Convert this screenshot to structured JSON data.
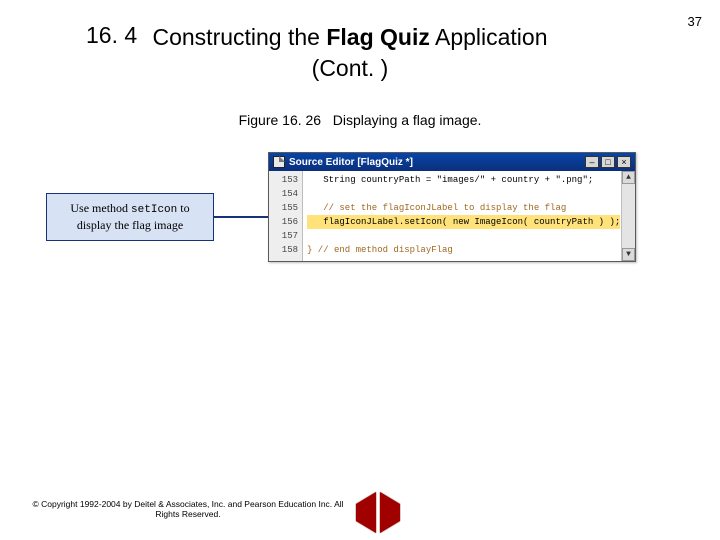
{
  "page_number": "37",
  "section_number": "16. 4",
  "title_prefix": "Constructing the ",
  "title_bold": "Flag Quiz",
  "title_suffix": " Application",
  "title_line2": "(Cont. )",
  "figure_label": "Figure 16. 26",
  "figure_caption": "Displaying a flag image.",
  "callout_line1": "Use method ",
  "callout_mono": "setIcon",
  "callout_line1_suffix": " to",
  "callout_line2": "display the flag image",
  "editor": {
    "title": "Source Editor [FlagQuiz *]",
    "min_label": "–",
    "max_label": "□",
    "close_label": "×",
    "line_numbers": [
      "153",
      "154",
      "155",
      "156",
      "157",
      "158"
    ],
    "code_lines": {
      "l153": "   String countryPath = \"images/\" + country + \".png\";",
      "l154": "",
      "l155_cmt": "   // set the flagIconJLabel to display the flag",
      "l156_hl": "   flagIconJLabel.setIcon( new ImageIcon( countryPath ) );",
      "l157": "",
      "l158_cmt": "} // end method displayFlag"
    },
    "scroll_up": "▲",
    "scroll_dn": "▼"
  },
  "copyright": "© Copyright 1992-2004 by Deitel & Associates, Inc. and Pearson Education Inc. All Rights Reserved.",
  "colors": {
    "callout_bg": "#d7e2f4",
    "callout_border": "#19317b",
    "titlebar_grad_top": "#0844a8",
    "titlebar_grad_bot": "#0a2f7a",
    "highlight_bg": "#ffe27a",
    "nav_arrow": "#a00000"
  }
}
